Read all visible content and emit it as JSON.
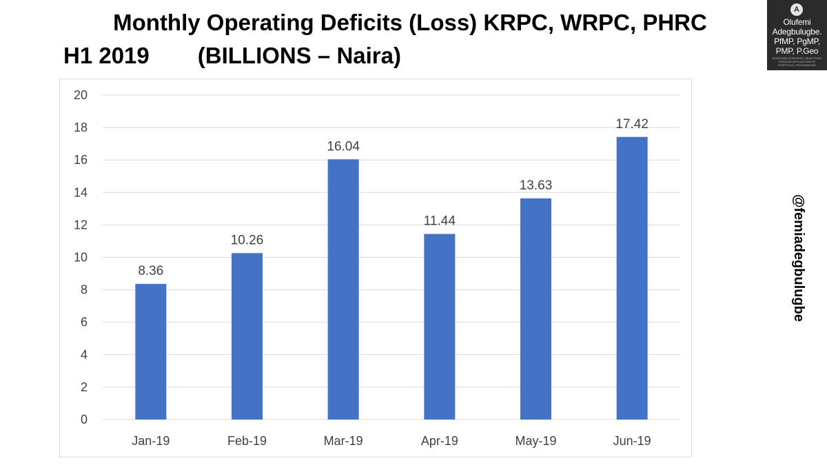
{
  "title": {
    "line1": "Monthly Operating Deficits (Loss) KRPC, WRPC, PHRC",
    "line2_left": "H1 2019",
    "line2_right": "(BILLIONS – Naira)"
  },
  "logo": {
    "emblem": "A",
    "name_line1": "Olufemi",
    "name_line2": "Adegbulugbe.",
    "cred_line1": "PfMP, PgMP,",
    "cred_line2": "PMP, P.Geo",
    "tagline": "ACHIEVING STRATEGIC OBJECTIVES THROUGH APPLICATION OF PORTFOLIO, PROGRAM AND PROJECT MANAGEMENT"
  },
  "handle": "@femiadegbulugbe",
  "colors": {
    "bar": "#4472c4",
    "grid": "#d9d9d9",
    "text": "#404040"
  },
  "chart_data": {
    "type": "bar",
    "title": "Monthly Operating Deficits (Loss) KRPC, WRPC, PHRC H1 2019 (BILLIONS – Naira)",
    "categories": [
      "Jan-19",
      "Feb-19",
      "Mar-19",
      "Apr-19",
      "May-19",
      "Jun-19"
    ],
    "values": [
      8.36,
      10.26,
      16.04,
      11.44,
      13.63,
      17.42
    ],
    "data_labels": [
      "8.36",
      "10.26",
      "16.04",
      "11.44",
      "13.63",
      "17.42"
    ],
    "ylim": [
      0,
      20
    ],
    "yticks": [
      0,
      2,
      4,
      6,
      8,
      10,
      12,
      14,
      16,
      18,
      20
    ],
    "xlabel": "",
    "ylabel": "",
    "grid": true,
    "legend": "none"
  }
}
